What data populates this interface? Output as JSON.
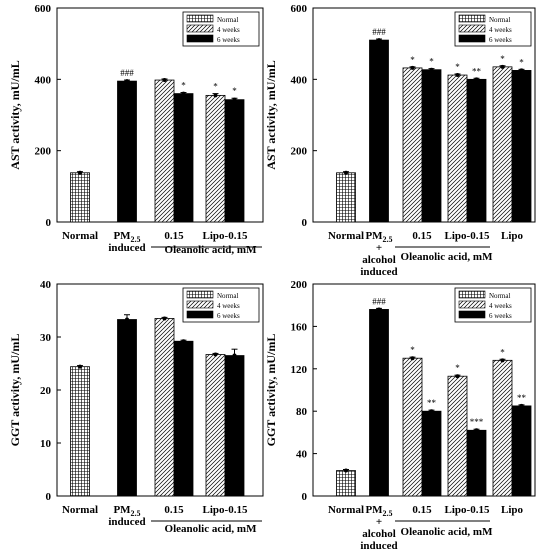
{
  "legend": {
    "normal": "Normal",
    "w4": "4 weeks",
    "w6": "6 weeks"
  },
  "chart_data": [
    {
      "panel": "top-left",
      "type": "bar",
      "ylabel": "AST activity, mU/mL",
      "ylim": [
        0,
        600
      ],
      "yticks": [
        "0",
        "200",
        "400",
        "600"
      ],
      "group_label": "Oleanolic acid, mM",
      "categories": [
        {
          "label": "Normal",
          "sub": "",
          "values": {
            "normal": 138
          },
          "err": {
            "normal": 3
          }
        },
        {
          "label": "PM",
          "sub": "2.5",
          "suffix": "",
          "extra": [
            "induced"
          ],
          "values": {
            "w6": 395
          },
          "err": {
            "w6": 3
          },
          "marks": {
            "w6": "###"
          }
        },
        {
          "label": "0.15",
          "values": {
            "w4": 398,
            "w6": 360
          },
          "err": {
            "w4": 3,
            "w6": 3
          },
          "marks": {
            "w6": "*"
          }
        },
        {
          "label": "Lipo-0.15",
          "values": {
            "w4": 355,
            "w6": 343
          },
          "err": {
            "w4": 5,
            "w6": 4
          },
          "marks": {
            "w4": "*",
            "w6": "*"
          }
        }
      ],
      "legend_position": "top-right"
    },
    {
      "panel": "top-right",
      "type": "bar",
      "ylabel": "AST activity, mU/mL",
      "ylim": [
        0,
        600
      ],
      "yticks": [
        "0",
        "200",
        "400",
        "600"
      ],
      "group_label": "Oleanolic acid, mM",
      "categories": [
        {
          "label": "Normal",
          "values": {
            "normal": 138
          },
          "err": {
            "normal": 3
          }
        },
        {
          "label": "PM",
          "sub": "2.5",
          "extra": [
            "+",
            "alcohol",
            "induced"
          ],
          "values": {
            "w6": 510
          },
          "err": {
            "w6": 3
          },
          "marks": {
            "w6": "###"
          }
        },
        {
          "label": "0.15",
          "values": {
            "w4": 432,
            "w6": 427
          },
          "err": {
            "w4": 3,
            "w6": 3
          },
          "marks": {
            "w4": "*",
            "w6": "*"
          }
        },
        {
          "label": "Lipo-0.15",
          "values": {
            "w4": 412,
            "w6": 400
          },
          "err": {
            "w4": 3,
            "w6": 3
          },
          "marks": {
            "w4": "*",
            "w6": "**"
          }
        },
        {
          "label": "Lipo",
          "values": {
            "w4": 435,
            "w6": 425
          },
          "err": {
            "w4": 3,
            "w6": 3
          },
          "marks": {
            "w4": "*",
            "w6": "*"
          }
        }
      ],
      "legend_position": "top-right"
    },
    {
      "panel": "bottom-left",
      "type": "bar",
      "ylabel": "GGT activity, mU/mL",
      "ylim": [
        0,
        40
      ],
      "yticks": [
        "0",
        "10",
        "20",
        "30",
        "40"
      ],
      "group_label": "Oleanolic acid, mM",
      "categories": [
        {
          "label": "Normal",
          "values": {
            "normal": 24.4
          },
          "err": {
            "normal": 0.2
          }
        },
        {
          "label": "PM",
          "sub": "2.5",
          "extra": [
            "induced"
          ],
          "values": {
            "w6": 33.3
          },
          "err": {
            "w6": 0.9
          }
        },
        {
          "label": "0.15",
          "values": {
            "w4": 33.5,
            "w6": 29.2
          },
          "err": {
            "w4": 0.2,
            "w6": 0.2
          }
        },
        {
          "label": "Lipo-0.15",
          "values": {
            "w4": 26.7,
            "w6": 26.5
          },
          "err": {
            "w4": 0.2,
            "w6": 1.2
          }
        }
      ],
      "legend_position": "top-right"
    },
    {
      "panel": "bottom-right",
      "type": "bar",
      "ylabel": "GGT activity, mU/mL",
      "ylim": [
        0,
        200
      ],
      "yticks": [
        "0",
        "40",
        "80",
        "120",
        "160",
        "200"
      ],
      "group_label": "Oleanolic acid, mM",
      "categories": [
        {
          "label": "Normal",
          "values": {
            "normal": 24
          },
          "err": {
            "normal": 1
          }
        },
        {
          "label": "PM",
          "sub": "2.5",
          "extra": [
            "+",
            "alcohol",
            "induced"
          ],
          "values": {
            "w6": 176
          },
          "err": {
            "w6": 1
          },
          "marks": {
            "w6": "###"
          }
        },
        {
          "label": "0.15",
          "values": {
            "w4": 130,
            "w6": 80
          },
          "err": {
            "w4": 1,
            "w6": 1
          },
          "marks": {
            "w4": "*",
            "w6": "**"
          }
        },
        {
          "label": "Lipo-0.15",
          "values": {
            "w4": 113,
            "w6": 62
          },
          "err": {
            "w4": 1,
            "w6": 1
          },
          "marks": {
            "w4": "*",
            "w6": "***"
          }
        },
        {
          "label": "Lipo",
          "values": {
            "w4": 128,
            "w6": 85
          },
          "err": {
            "w4": 1,
            "w6": 1
          },
          "marks": {
            "w4": "*",
            "w6": "**"
          }
        }
      ],
      "legend_position": "top-right"
    }
  ]
}
